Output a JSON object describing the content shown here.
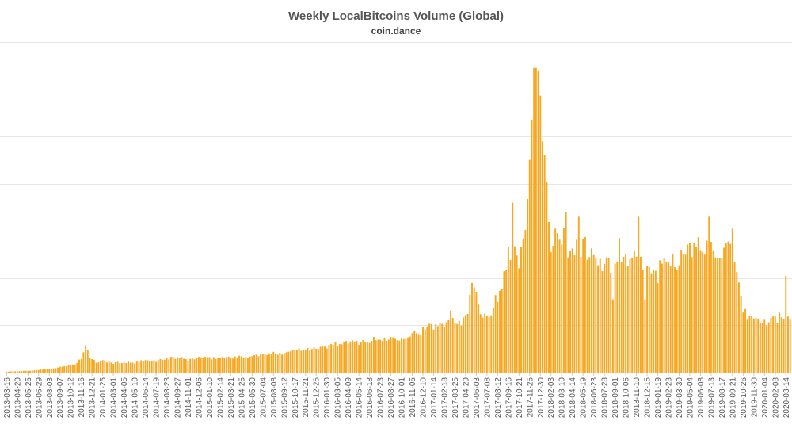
{
  "chart_data": {
    "type": "bar",
    "title": "Weekly LocalBitcoins Volume (Global)",
    "subtitle": "coin.dance",
    "xlabel": "",
    "ylabel": "",
    "start_week": "2013-03-16",
    "week_step_days": 7,
    "tick_every_weeks": 5,
    "bar_color": "#f7a823",
    "grid": true,
    "grid_color": "#e6e6e6",
    "ylim": [
      0,
      7
    ],
    "y_gridlines": [
      0,
      1,
      2,
      3,
      4,
      5,
      6,
      7
    ],
    "y_tick_labels_shown": false,
    "anchors": [
      [
        "2013-03-16",
        0.02
      ],
      [
        "2013-06-01",
        0.04
      ],
      [
        "2013-08-03",
        0.08
      ],
      [
        "2013-09-14",
        0.12
      ],
      [
        "2013-10-26",
        0.18
      ],
      [
        "2013-11-16",
        0.3
      ],
      [
        "2013-11-30",
        0.58
      ],
      [
        "2013-12-14",
        0.3
      ],
      [
        "2014-01-04",
        0.22
      ],
      [
        "2014-01-25",
        0.25
      ],
      [
        "2014-03-01",
        0.2
      ],
      [
        "2014-04-05",
        0.22
      ],
      [
        "2014-05-10",
        0.2
      ],
      [
        "2014-06-07",
        0.25
      ],
      [
        "2014-07-19",
        0.25
      ],
      [
        "2014-08-23",
        0.3
      ],
      [
        "2014-09-27",
        0.32
      ],
      [
        "2014-11-01",
        0.27
      ],
      [
        "2014-12-06",
        0.32
      ],
      [
        "2015-01-10",
        0.3
      ],
      [
        "2015-02-14",
        0.32
      ],
      [
        "2015-03-21",
        0.33
      ],
      [
        "2015-04-25",
        0.33
      ],
      [
        "2015-05-30",
        0.35
      ],
      [
        "2015-07-04",
        0.38
      ],
      [
        "2015-08-08",
        0.4
      ],
      [
        "2015-09-12",
        0.43
      ],
      [
        "2015-10-17",
        0.48
      ],
      [
        "2015-11-21",
        0.52
      ],
      [
        "2015-12-26",
        0.5
      ],
      [
        "2016-01-30",
        0.55
      ],
      [
        "2016-03-05",
        0.62
      ],
      [
        "2016-04-09",
        0.62
      ],
      [
        "2016-05-14",
        0.65
      ],
      [
        "2016-06-18",
        0.68
      ],
      [
        "2016-07-23",
        0.7
      ],
      [
        "2016-08-27",
        0.72
      ],
      [
        "2016-10-01",
        0.76
      ],
      [
        "2016-11-05",
        0.82
      ],
      [
        "2016-12-10",
        0.9
      ],
      [
        "2017-01-14",
        0.98
      ],
      [
        "2017-02-18",
        1.05
      ],
      [
        "2017-03-11",
        1.3
      ],
      [
        "2017-04-01",
        1.05
      ],
      [
        "2017-04-29",
        1.15
      ],
      [
        "2017-05-27",
        1.9
      ],
      [
        "2017-06-24",
        1.2
      ],
      [
        "2017-07-22",
        1.3
      ],
      [
        "2017-08-26",
        1.8
      ],
      [
        "2017-09-16",
        2.7
      ],
      [
        "2017-10-21",
        2.3
      ],
      [
        "2017-11-11",
        3.2
      ],
      [
        "2017-11-25",
        4.2
      ],
      [
        "2017-12-16",
        6.4
      ],
      [
        "2017-12-30",
        5.5
      ],
      [
        "2018-01-13",
        4.4
      ],
      [
        "2018-02-03",
        2.8
      ],
      [
        "2018-03-10",
        2.85
      ],
      [
        "2018-04-14",
        2.6
      ],
      [
        "2018-05-19",
        2.7
      ],
      [
        "2018-06-23",
        2.45
      ],
      [
        "2018-07-28",
        2.3
      ],
      [
        "2018-09-01",
        2.2
      ],
      [
        "2018-10-06",
        2.35
      ],
      [
        "2018-11-10",
        2.45
      ],
      [
        "2018-12-15",
        2.2
      ],
      [
        "2019-01-19",
        2.1
      ],
      [
        "2019-02-23",
        2.45
      ],
      [
        "2019-03-30",
        2.4
      ],
      [
        "2019-05-04",
        2.55
      ],
      [
        "2019-06-08",
        2.7
      ],
      [
        "2019-07-13",
        2.65
      ],
      [
        "2019-08-17",
        2.6
      ],
      [
        "2019-09-21",
        2.5
      ],
      [
        "2019-10-26",
        1.25
      ],
      [
        "2019-11-30",
        1.15
      ],
      [
        "2020-01-04",
        1.05
      ],
      [
        "2020-02-08",
        1.15
      ],
      [
        "2020-03-14",
        1.18
      ],
      [
        "2020-03-28",
        1.12
      ]
    ],
    "spikes": [
      [
        "2017-05-20",
        1.9
      ],
      [
        "2017-09-30",
        3.6
      ],
      [
        "2017-12-09",
        6.45
      ],
      [
        "2017-12-23",
        6.4
      ],
      [
        "2018-01-06",
        4.9
      ],
      [
        "2018-01-13",
        4.6
      ],
      [
        "2018-03-24",
        3.4
      ],
      [
        "2018-05-05",
        3.3
      ],
      [
        "2018-07-21",
        2.15
      ],
      [
        "2018-08-25",
        1.55
      ],
      [
        "2018-09-15",
        2.85
      ],
      [
        "2018-11-17",
        3.3
      ],
      [
        "2018-12-08",
        1.55
      ],
      [
        "2019-07-06",
        3.3
      ],
      [
        "2019-09-21",
        3.05
      ],
      [
        "2020-03-14",
        2.05
      ]
    ],
    "tick_labels": [
      "2013-03-16",
      "2013-04-20",
      "2013-05-25",
      "2013-06-29",
      "2013-08-03",
      "2013-09-07",
      "2013-10-12",
      "2013-11-16",
      "2013-12-21",
      "2014-01-25",
      "2014-03-01",
      "2014-04-05",
      "2014-05-10",
      "2014-06-14",
      "2014-07-19",
      "2014-08-23",
      "2014-09-27",
      "2014-11-01",
      "2014-12-06",
      "2015-01-10",
      "2015-02-14",
      "2015-03-21",
      "2015-04-25",
      "2015-05-30",
      "2015-07-04",
      "2015-08-08",
      "2015-09-12",
      "2015-10-17",
      "2015-11-21",
      "2015-12-26",
      "2016-01-30",
      "2016-03-05",
      "2016-04-09",
      "2016-05-14",
      "2016-06-18",
      "2016-07-23",
      "2016-08-27",
      "2016-10-01",
      "2016-11-05",
      "2016-12-10",
      "2017-01-14",
      "2017-02-18",
      "2017-03-25",
      "2017-04-29",
      "2017-06-03",
      "2017-07-08",
      "2017-08-12",
      "2017-09-16",
      "2017-10-21",
      "2017-11-25",
      "2017-12-30",
      "2018-02-03",
      "2018-03-10",
      "2018-04-14",
      "2018-05-19",
      "2018-06-23",
      "2018-07-28",
      "2018-09-01",
      "2018-10-06",
      "2018-11-10",
      "2018-12-15",
      "2019-01-19",
      "2019-02-23",
      "2019-03-30",
      "2019-05-04",
      "2019-06-08",
      "2019-07-13",
      "2019-08-17",
      "2019-09-21",
      "2019-10-26",
      "2019-11-30",
      "2020-01-04",
      "2020-02-08",
      "2020-03-14"
    ]
  }
}
